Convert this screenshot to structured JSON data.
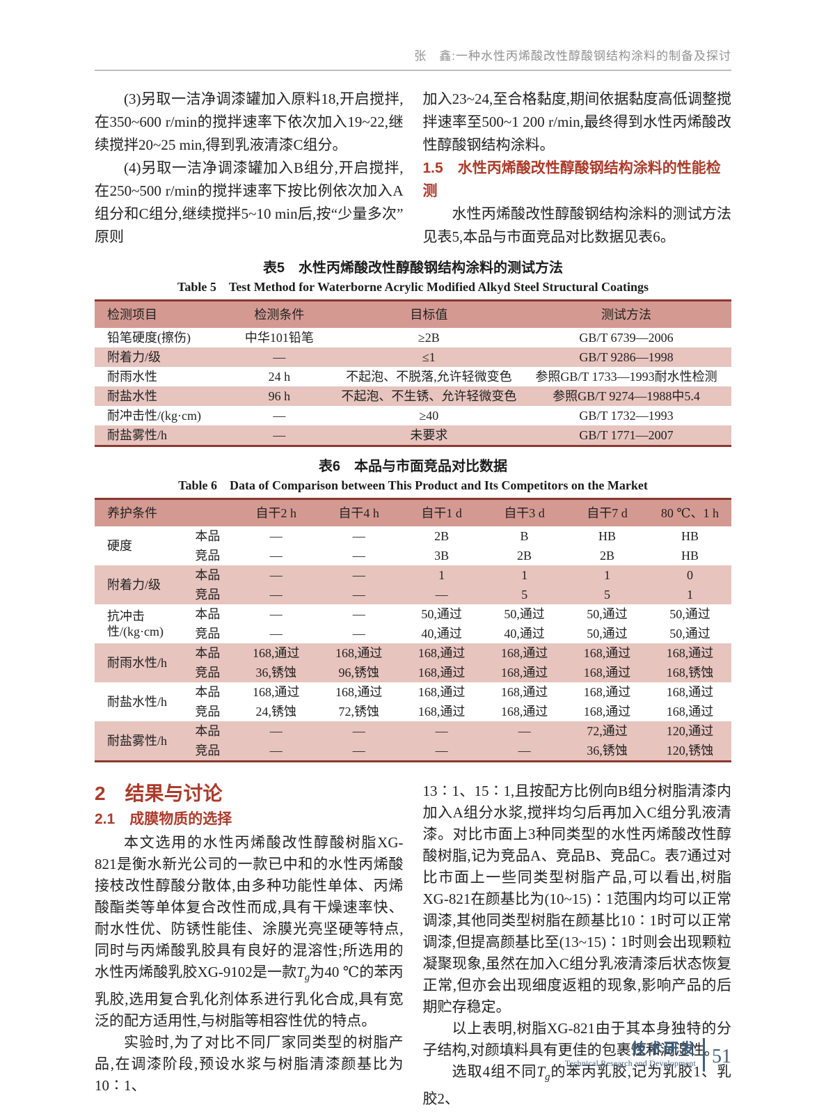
{
  "page": {
    "header": {
      "running_title": "张　鑫:一种水性丙烯酸改性醇酸钢结构涂料的制备及探讨"
    },
    "footer": {
      "section_zh": "技术研发",
      "section_en": "Technical Research and Development",
      "page_number": "51"
    }
  },
  "colors": {
    "accent_red": "#ab3b2a",
    "table_border_maroon": "#8a382e",
    "table_header_bg": "#d49a92",
    "table_row_pink": "#e7c4be",
    "footer_blue": "#41607c",
    "running_title_gray": "#919191"
  },
  "intro": {
    "left_paragraphs": [
      {
        "indent": true,
        "runs": [
          {
            "t": "(3)另取一洁净调漆罐加入原料18,开启搅拌,在350~600 r/min的搅拌速率下依次加入19~22,继续搅拌20~25 min,得到乳液清漆C组分。"
          }
        ]
      },
      {
        "indent": true,
        "runs": [
          {
            "t": "(4)另取一洁净调漆罐加入B组分,开启搅拌,在250~500 r/min的搅拌速率下按比例依次加入A组分和C组分,继续搅拌5~10 min后,按“少量多次”原则"
          }
        ]
      }
    ],
    "right_pre": "加入23~24,至合格黏度,期间依据黏度高低调整搅拌速率至500~1 200 r/min,最终得到水性丙烯酸改性醇酸钢结构涂料。",
    "heading_1_5": "1.5　水性丙烯酸改性醇酸钢结构涂料的性能检测",
    "right_post": "水性丙烯酸改性醇酸钢结构涂料的测试方法见表5,本品与市面竞品对比数据见表6。"
  },
  "table5": {
    "title_zh": "表5　水性丙烯酸改性醇酸钢结构涂料的测试方法",
    "title_en": "Table 5　Test Method for Waterborne Acrylic Modified Alkyd Steel Structural Coatings",
    "headers": [
      "检测项目",
      "检测条件",
      "目标值",
      "测试方法"
    ],
    "rows": [
      [
        "铅笔硬度(擦伤)",
        "中华101铅笔",
        "≥2B",
        "GB/T 6739—2006"
      ],
      [
        "附着力/级",
        "—",
        "≤1",
        "GB/T 9286—1998"
      ],
      [
        "耐雨水性",
        "24 h",
        "不起泡、不脱落,允许轻微变色",
        "参照GB/T 1733—1993耐水性检测"
      ],
      [
        "耐盐水性",
        "96 h",
        "不起泡、不生锈、允许轻微变色",
        "参照GB/T 9274—1988中5.4"
      ],
      [
        "耐冲击性/(kg·cm)",
        "—",
        "≥40",
        "GB/T 1732—1993"
      ],
      [
        "耐盐雾性/h",
        "—",
        "未要求",
        "GB/T 1771—2007"
      ]
    ]
  },
  "table6": {
    "title_zh": "表6　本品与市面竞品对比数据",
    "title_en": "Table 6　Data of Comparison between This Product and Its Competitors on the Market",
    "corner_header": "养护条件",
    "col_headers": [
      "自干2 h",
      "自干4 h",
      "自干1 d",
      "自干3 d",
      "自干7 d",
      "80 ℃、1 h"
    ],
    "row_labels": {
      "ours": "本品",
      "competitor": "竞品"
    },
    "groups": [
      {
        "name": "硬度",
        "shaded": false,
        "ours": [
          "—",
          "—",
          "2B",
          "B",
          "HB",
          "HB"
        ],
        "competitor": [
          "—",
          "—",
          "3B",
          "2B",
          "2B",
          "HB"
        ]
      },
      {
        "name": "附着力/级",
        "shaded": true,
        "ours": [
          "—",
          "—",
          "1",
          "1",
          "1",
          "0"
        ],
        "competitor": [
          "—",
          "—",
          "—",
          "5",
          "5",
          "1"
        ]
      },
      {
        "name": "抗冲击性/(kg·cm)",
        "shaded": false,
        "ours": [
          "—",
          "—",
          "50,通过",
          "50,通过",
          "50,通过",
          "50,通过"
        ],
        "competitor": [
          "—",
          "—",
          "40,通过",
          "40,通过",
          "50,通过",
          "50,通过"
        ]
      },
      {
        "name": "耐雨水性/h",
        "shaded": true,
        "ours": [
          "168,通过",
          "168,通过",
          "168,通过",
          "168,通过",
          "168,通过",
          "168,通过"
        ],
        "competitor": [
          "36,锈蚀",
          "96,锈蚀",
          "168,通过",
          "168,通过",
          "168,通过",
          "168,锈蚀"
        ]
      },
      {
        "name": "耐盐水性/h",
        "shaded": false,
        "ours": [
          "168,通过",
          "168,通过",
          "168,通过",
          "168,通过",
          "168,通过",
          "168,通过"
        ],
        "competitor": [
          "24,锈蚀",
          "72,锈蚀",
          "168,通过",
          "168,通过",
          "168,通过",
          "168,通过"
        ]
      },
      {
        "name": "耐盐雾性/h",
        "shaded": true,
        "ours": [
          "—",
          "—",
          "—",
          "—",
          "72,通过",
          "120,通过"
        ],
        "competitor": [
          "—",
          "—",
          "—",
          "—",
          "36,锈蚀",
          "120,锈蚀"
        ]
      }
    ]
  },
  "results": {
    "heading": "2　结果与讨论",
    "subheading": "2.1　成膜物质的选择",
    "left_paragraphs": [
      {
        "indent": true,
        "runs": [
          {
            "t": "本文选用的水性丙烯酸改性醇酸树脂XG-821是衡水新光公司的一款已中和的水性丙烯酸接枝改性醇酸分散体,由多种功能性单体、丙烯酸酯类等单体复合改性而成,具有干燥速率快、耐水性优、防锈性能佳、涂膜光亮坚硬等特点,同时与丙烯酸乳胶具有良好的混溶性;所选用的水性丙烯酸乳胶XG-9102是一款"
          },
          {
            "t": "T",
            "i": true
          },
          {
            "t": "g",
            "sub": true,
            "i": true
          },
          {
            "t": "为40 ℃的苯丙乳胶,选用复合乳化剂体系进行乳化合成,具有宽泛的配方适用性,与树脂等相容性优的特点。"
          }
        ]
      },
      {
        "indent": true,
        "runs": [
          {
            "t": "实验时,为了对比不同厂家同类型的树脂产品,在调漆阶段,预设水浆与树脂清漆颜基比为10∶1、"
          }
        ]
      }
    ],
    "right_paragraphs": [
      {
        "indent": false,
        "runs": [
          {
            "t": "13∶1、15∶1,且按配方比例向B组分树脂清漆内加入A组分水浆,搅拌均匀后再加入C组分乳液清漆。对比市面上3种同类型的水性丙烯酸改性醇酸树脂,记为竞品A、竞品B、竞品C。表7通过对比市面上一些同类型树脂产品,可以看出,树脂XG-821在颜基比为(10~15)∶1范围内均可以正常调漆,其他同类型树脂在颜基比10∶1时可以正常调漆,但提高颜基比至(13~15)∶1时则会出现颗粒凝聚现象,虽然在加入C组分乳液清漆后状态恢复正常,但亦会出现细度返粗的现象,影响产品的后期贮存稳定。"
          }
        ]
      },
      {
        "indent": true,
        "runs": [
          {
            "t": "以上表明,树脂XG-821由于其本身独特的分子结构,对颜填料具有更佳的包裹性和润湿性。"
          }
        ]
      },
      {
        "indent": true,
        "runs": [
          {
            "t": "选取4组不同"
          },
          {
            "t": "T",
            "i": true
          },
          {
            "t": "g",
            "sub": true,
            "i": true
          },
          {
            "t": "的苯丙乳胶,记为乳胶1、乳胶2、"
          }
        ]
      }
    ]
  }
}
